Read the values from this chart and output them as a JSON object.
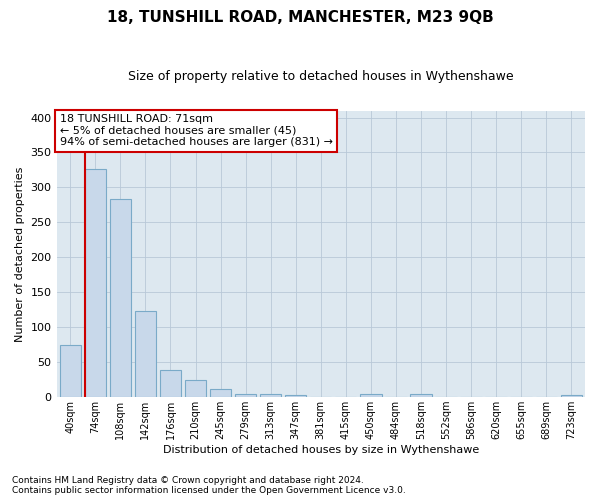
{
  "title": "18, TUNSHILL ROAD, MANCHESTER, M23 9QB",
  "subtitle": "Size of property relative to detached houses in Wythenshawe",
  "xlabel": "Distribution of detached houses by size in Wythenshawe",
  "ylabel": "Number of detached properties",
  "footer_line1": "Contains HM Land Registry data © Crown copyright and database right 2024.",
  "footer_line2": "Contains public sector information licensed under the Open Government Licence v3.0.",
  "bin_labels": [
    "40sqm",
    "74sqm",
    "108sqm",
    "142sqm",
    "176sqm",
    "210sqm",
    "245sqm",
    "279sqm",
    "313sqm",
    "347sqm",
    "381sqm",
    "415sqm",
    "450sqm",
    "484sqm",
    "518sqm",
    "552sqm",
    "586sqm",
    "620sqm",
    "655sqm",
    "689sqm",
    "723sqm"
  ],
  "bar_values": [
    75,
    327,
    283,
    123,
    39,
    24,
    12,
    5,
    5,
    3,
    0,
    0,
    5,
    0,
    4,
    0,
    0,
    0,
    0,
    0,
    3
  ],
  "bar_color": "#c8d8ea",
  "bar_edge_color": "#7aaac8",
  "property_bin_index": 1,
  "annotation_title": "18 TUNSHILL ROAD: 71sqm",
  "annotation_line2": "← 5% of detached houses are smaller (45)",
  "annotation_line3": "94% of semi-detached houses are larger (831) →",
  "vline_color": "#cc0000",
  "annotation_box_color": "#ffffff",
  "annotation_box_edge": "#cc0000",
  "grid_color": "#b8c8d8",
  "bg_color": "#dde8f0",
  "fig_bg_color": "#ffffff",
  "ylim": [
    0,
    410
  ],
  "yticks": [
    0,
    50,
    100,
    150,
    200,
    250,
    300,
    350,
    400
  ],
  "title_fontsize": 11,
  "subtitle_fontsize": 9,
  "ylabel_fontsize": 8,
  "xlabel_fontsize": 8,
  "tick_fontsize": 8,
  "xtick_fontsize": 7,
  "footer_fontsize": 6.5,
  "annotation_fontsize": 8
}
